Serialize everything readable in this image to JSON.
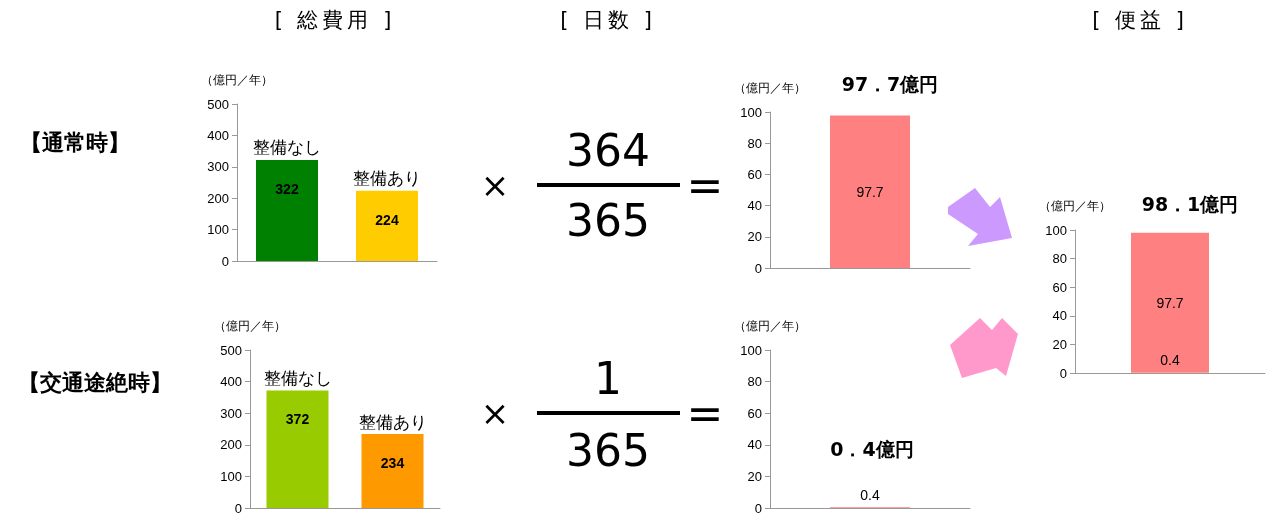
{
  "chart_data": [
    {
      "type": "bar",
      "title": "[ 総費用 ]",
      "ylabel": "（億円／年）",
      "categories": [
        "整備なし",
        "整備あり"
      ],
      "values": [
        322,
        224
      ],
      "colors": [
        "#008000",
        "#ffcc00"
      ],
      "ylim": [
        0,
        500
      ],
      "yticks": [
        0,
        100,
        200,
        300,
        400,
        500
      ],
      "data_labels": true,
      "annotations": [
        "【通常時】"
      ]
    },
    {
      "type": "other",
      "title": "[ 日数 ]",
      "annotations": [
        "×",
        "364",
        "365",
        "=",
        "×",
        "1",
        "365",
        "="
      ]
    },
    {
      "type": "bar",
      "ylabel": "（億円／年）",
      "categories": [
        null
      ],
      "values": [
        97.7
      ],
      "colors": [
        "#ff8080"
      ],
      "ylim": [
        0,
        100
      ],
      "yticks": [
        0,
        20,
        40,
        60,
        80,
        100
      ],
      "data_labels": true,
      "annotations": [
        "97．7億円"
      ]
    },
    {
      "type": "bar",
      "title": "[ 便益 ]",
      "ylabel": "（億円／年）",
      "categories": [
        null
      ],
      "stacked": true,
      "series": [
        {
          "color": "#ff8080",
          "values": [
            0.4
          ]
        },
        {
          "color": "#ff8080",
          "values": [
            97.7
          ]
        }
      ],
      "ylim": [
        0,
        100
      ],
      "yticks": [
        0,
        20,
        40,
        60,
        80,
        100
      ],
      "data_labels": true,
      "totals": [
        "98．1億円"
      ]
    },
    {
      "type": "bar",
      "ylabel": "（億円／年）",
      "categories": [
        "整備なし",
        "整備あり"
      ],
      "values": [
        372,
        234
      ],
      "colors": [
        "#99cc00",
        "#ff9900"
      ],
      "ylim": [
        0,
        500
      ],
      "yticks": [
        0,
        100,
        200,
        300,
        400,
        500
      ],
      "data_labels": true,
      "annotations": [
        "【交通途絶時】"
      ]
    },
    {
      "type": "bar",
      "ylabel": "（億円／年）",
      "categories": [
        null
      ],
      "values": [
        0.4
      ],
      "colors": [
        "#ff8080"
      ],
      "ylim": [
        0,
        100
      ],
      "yticks": [
        0,
        20,
        40,
        60,
        80,
        100
      ],
      "data_labels": true,
      "annotations": [
        "0．4億円"
      ]
    }
  ]
}
